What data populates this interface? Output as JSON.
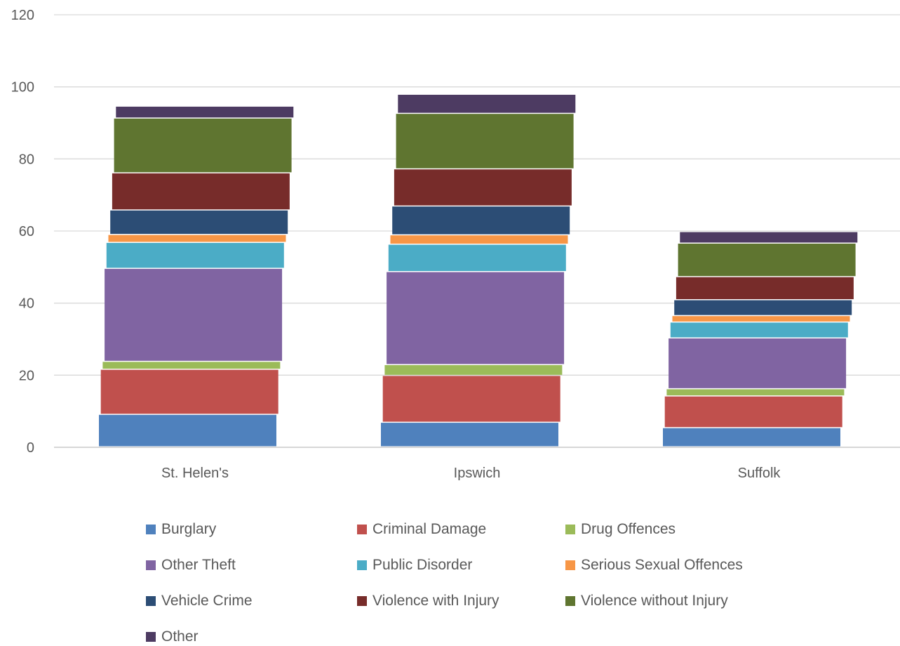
{
  "chart_data": {
    "type": "bar",
    "stacked": true,
    "categories": [
      "St. Helen's",
      "Ipswich",
      "Suffolk"
    ],
    "ylim": [
      0,
      120
    ],
    "yticks": [
      0,
      20,
      40,
      60,
      80,
      100,
      120
    ],
    "grid": true,
    "legend_position": "bottom",
    "series": [
      {
        "name": "Burglary",
        "color": "#4F81BD",
        "values": [
          9.0,
          6.8,
          5.3
        ]
      },
      {
        "name": "Criminal Damage",
        "color": "#C0504D",
        "values": [
          12.5,
          13.0,
          8.8
        ]
      },
      {
        "name": "Drug Offences",
        "color": "#9BBB59",
        "values": [
          2.2,
          3.0,
          2.0
        ]
      },
      {
        "name": "Other Theft",
        "color": "#8064A2",
        "values": [
          25.8,
          25.8,
          14.1
        ]
      },
      {
        "name": "Public Disorder",
        "color": "#4BACC6",
        "values": [
          7.2,
          7.6,
          4.4
        ]
      },
      {
        "name": "Serious Sexual Offences",
        "color": "#F79646",
        "values": [
          2.2,
          2.6,
          1.8
        ]
      },
      {
        "name": "Vehicle Crime",
        "color": "#2C4D75",
        "values": [
          6.8,
          8.0,
          4.4
        ]
      },
      {
        "name": "Violence with Injury",
        "color": "#772C2A",
        "values": [
          10.3,
          10.3,
          6.4
        ]
      },
      {
        "name": "Violence without Injury",
        "color": "#5F7530",
        "values": [
          15.2,
          15.4,
          9.3
        ]
      },
      {
        "name": "Other",
        "color": "#4D3B62",
        "values": [
          3.3,
          5.3,
          3.2
        ]
      }
    ]
  }
}
